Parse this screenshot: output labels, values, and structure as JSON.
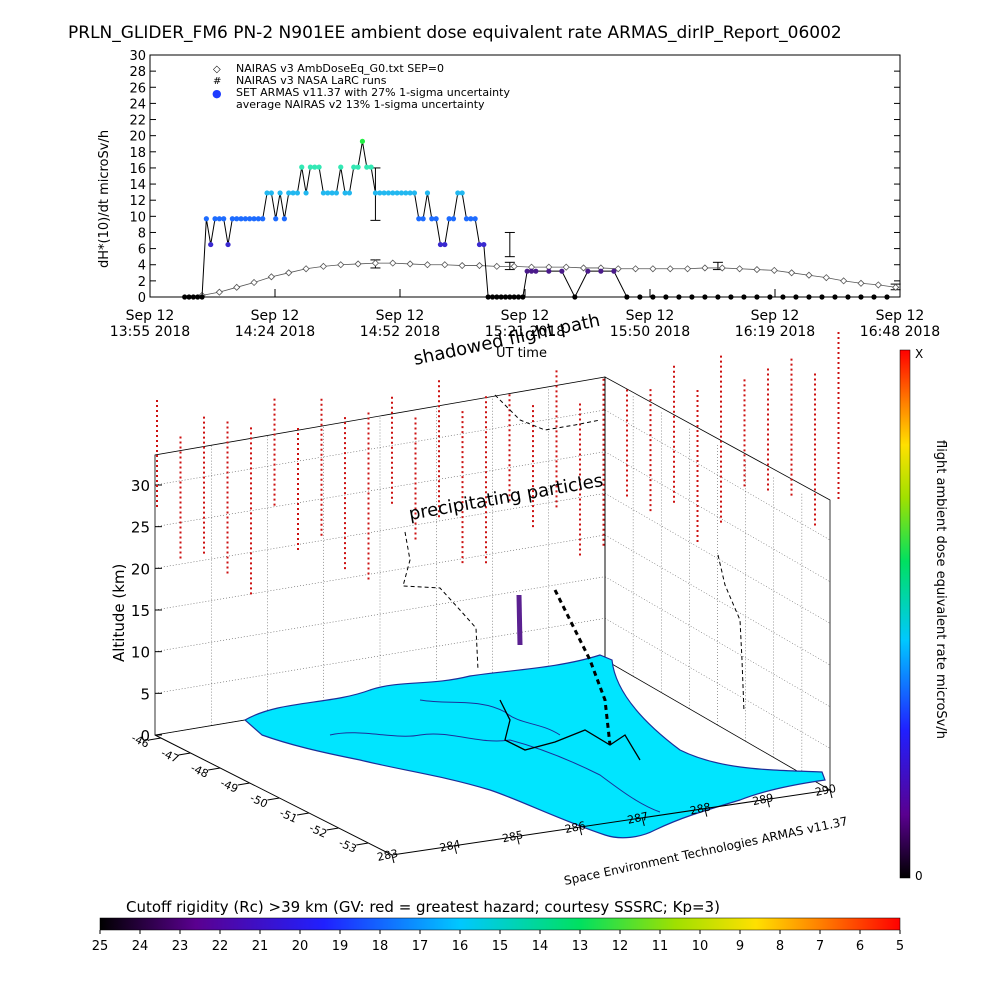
{
  "title": "PRLN_GLIDER_FM6 PN-2 N901EE ambient dose equivalent rate ARMAS_dirIP_Report_06002",
  "chart_data": [
    {
      "type": "scatter",
      "ylabel": "dH*(10)/dt microSv/h",
      "xlabel": "UT time",
      "ylim": [
        0,
        30
      ],
      "y_ticks": [
        0,
        2,
        4,
        6,
        8,
        10,
        12,
        14,
        16,
        18,
        20,
        22,
        24,
        26,
        28,
        30
      ],
      "x_ticks": [
        {
          "line1": "Sep 12",
          "line2": "13:55 2018"
        },
        {
          "line1": "Sep 12",
          "line2": "14:24 2018"
        },
        {
          "line1": "Sep 12",
          "line2": "14:52 2018"
        },
        {
          "line1": "Sep 12",
          "line2": "15:21 2018"
        },
        {
          "line1": "Sep 12",
          "line2": "15:50 2018"
        },
        {
          "line1": "Sep 12",
          "line2": "16:19 2018"
        },
        {
          "line1": "Sep 12",
          "line2": "16:48 2018"
        }
      ],
      "legend": [
        {
          "symbol": "◇",
          "label": "NAIRAS v3 AmbDoseEq_G0.txt SEP=0"
        },
        {
          "symbol": "#",
          "label": "NAIRAS v3 NASA LaRC runs"
        },
        {
          "symbol": "●",
          "label": "SET ARMAS v11.37 with 27% 1-sigma uncertainty"
        },
        {
          "symbol": "",
          "label": "average NAIRAS v2 13% 1-sigma uncertainty"
        }
      ],
      "legend_position": "top-left",
      "x_minutes": [
        0,
        8,
        9,
        10,
        11,
        12,
        13,
        14,
        15,
        16,
        17,
        18,
        20,
        22,
        24,
        26,
        28,
        30,
        32,
        34,
        36,
        38,
        40,
        42,
        44,
        46,
        48,
        50,
        52,
        54,
        56,
        58,
        60,
        62,
        64,
        66,
        68,
        70,
        72,
        74,
        76,
        78,
        80,
        82,
        84,
        86,
        87,
        88,
        89,
        90,
        92,
        95,
        100,
        104,
        108,
        112,
        116,
        120,
        124,
        128,
        132,
        136,
        140,
        144,
        148,
        152,
        156,
        160,
        164,
        168,
        172
      ],
      "armas_series": {
        "name": "SET ARMAS v11.37",
        "x_minutes": [
          8,
          9,
          10,
          11,
          12,
          13,
          14,
          15,
          16,
          17,
          18,
          19,
          20,
          21,
          22,
          23,
          24,
          25,
          26,
          27,
          28,
          29,
          30,
          31,
          32,
          33,
          34,
          35,
          36,
          37,
          38,
          39,
          40,
          41,
          42,
          43,
          44,
          45,
          46,
          47,
          48,
          49,
          50,
          51,
          52,
          53,
          54,
          55,
          56,
          57,
          58,
          59,
          60,
          61,
          62,
          63,
          64,
          65,
          66,
          67,
          68,
          69,
          70,
          71,
          72,
          73,
          74,
          75,
          76,
          77,
          78,
          79,
          80,
          81,
          82,
          83,
          84,
          85,
          86,
          87,
          88,
          89,
          92,
          95,
          98,
          101,
          104,
          107,
          110,
          113,
          116,
          119,
          122,
          125,
          128,
          131,
          134,
          137,
          140,
          143,
          146,
          149,
          152,
          155,
          158,
          161,
          164,
          167,
          170
        ],
        "values": [
          0,
          0,
          0,
          0,
          0,
          9.7,
          6.5,
          9.7,
          9.7,
          9.7,
          6.5,
          9.7,
          9.7,
          9.7,
          9.7,
          9.7,
          9.7,
          9.7,
          9.7,
          12.9,
          12.9,
          9.7,
          12.9,
          9.7,
          12.9,
          12.9,
          12.9,
          16.1,
          12.9,
          16.1,
          16.1,
          16.1,
          12.9,
          12.9,
          12.9,
          12.9,
          16.1,
          12.9,
          12.9,
          16.1,
          16.1,
          19.3,
          16.1,
          16.1,
          12.9,
          12.9,
          12.9,
          12.9,
          12.9,
          12.9,
          12.9,
          12.9,
          12.9,
          12.9,
          9.7,
          9.7,
          12.9,
          9.7,
          9.7,
          6.5,
          6.5,
          9.7,
          9.7,
          12.9,
          12.9,
          9.7,
          9.7,
          9.7,
          6.5,
          6.5,
          0,
          0,
          0,
          0,
          0,
          0,
          0,
          0,
          0,
          3.2,
          3.2,
          3.2,
          3.2,
          3.2,
          0,
          3.2,
          3.2,
          3.2,
          0,
          0,
          0,
          0,
          0,
          0,
          0,
          0,
          0,
          0,
          0,
          0,
          0,
          0,
          0,
          0,
          0,
          0,
          0,
          0,
          0
        ]
      },
      "nairas_series": {
        "name": "NAIRAS v3 AmbDoseEq_G0.txt SEP=0",
        "x_minutes": [
          12,
          16,
          20,
          24,
          28,
          32,
          36,
          40,
          44,
          48,
          52,
          56,
          60,
          64,
          68,
          72,
          76,
          80,
          84,
          88,
          92,
          96,
          100,
          104,
          108,
          112,
          116,
          120,
          124,
          128,
          132,
          136,
          140,
          144,
          148,
          152,
          156,
          160,
          164,
          168,
          172
        ],
        "values": [
          0.2,
          0.6,
          1.2,
          1.8,
          2.5,
          3.0,
          3.5,
          3.8,
          4.0,
          4.1,
          4.2,
          4.2,
          4.1,
          4.0,
          4.0,
          3.9,
          3.9,
          3.8,
          3.8,
          3.7,
          3.7,
          3.7,
          3.6,
          3.6,
          3.5,
          3.5,
          3.5,
          3.5,
          3.5,
          3.6,
          3.6,
          3.5,
          3.4,
          3.3,
          3.0,
          2.7,
          2.4,
          2.0,
          1.7,
          1.5,
          1.2
        ]
      },
      "error_bars": [
        {
          "x_minutes": 52,
          "y": 12.0,
          "low": 9.5,
          "high": 16.0
        },
        {
          "x_minutes": 52,
          "y": 4.1,
          "low": 3.6,
          "high": 4.6
        },
        {
          "x_minutes": 83,
          "y": 6.5,
          "low": 5.0,
          "high": 8.0
        },
        {
          "x_minutes": 83,
          "y": 3.8,
          "low": 3.4,
          "high": 4.3
        },
        {
          "x_minutes": 131,
          "y": 3.8,
          "low": 3.4,
          "high": 4.3
        },
        {
          "x_minutes": 172,
          "y": 1.2,
          "low": 0.9,
          "high": 1.6
        }
      ]
    },
    {
      "type": "scatter",
      "zlabel": "Altitude (km)",
      "z_ticks": [
        0,
        5,
        10,
        15,
        20,
        25,
        30
      ],
      "y_ticks": [
        "-46",
        "-47",
        "-48",
        "-49",
        "-50",
        "-51",
        "-52",
        "-53"
      ],
      "x_ticks": [
        "283",
        "284",
        "285",
        "286",
        "287",
        "288",
        "289",
        "290"
      ],
      "annotations": [
        "shadowed flight path",
        "precipitating particles",
        "Space Environment Technologies ARMAS v11.37"
      ],
      "colorbar_right": {
        "label": "flight ambient dose equivalent rate microSv/h",
        "top": "X",
        "bottom": "0"
      },
      "colorbar_bottom": {
        "label": "Cutoff rigidity (Rc) >39 km (GV: red = greatest hazard; courtesy SSSRC; Kp=3)",
        "ticks": [
          "25",
          "24",
          "23",
          "22",
          "21",
          "20",
          "19",
          "18",
          "17",
          "16",
          "15",
          "14",
          "13",
          "12",
          "11",
          "10",
          "9",
          "8",
          "7",
          "6",
          "5"
        ]
      }
    }
  ],
  "colors": {
    "nairas": "#555555",
    "armas_low": "#1e3cff",
    "armas_mid": "#22b8f0",
    "armas_high": "#33e8b4",
    "armas_peak": "#22ee44",
    "map_ocean": "#00e5ff",
    "land_outline": "#1a2f9a",
    "particles": "#cc1010"
  }
}
